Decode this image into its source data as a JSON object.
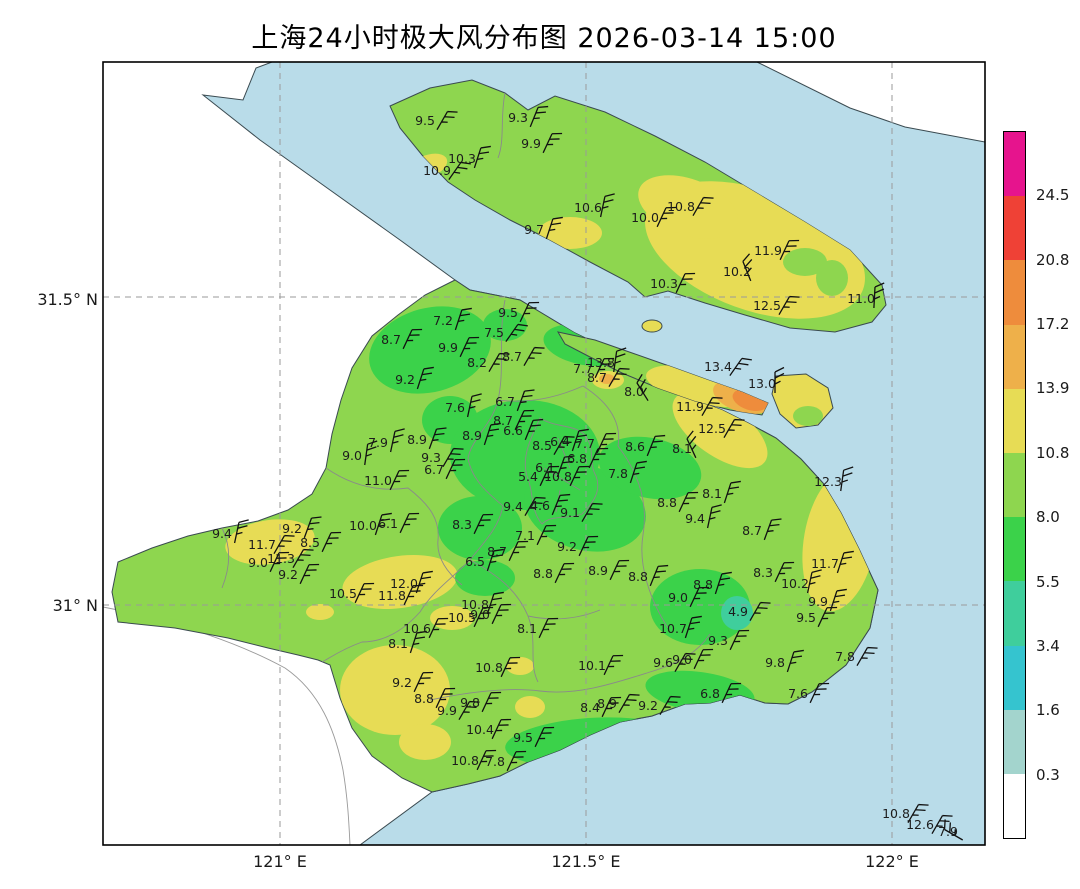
{
  "title": "上海24小时极大风分布图 2026-03-14 15:00",
  "axes": {
    "lat_ticks": [
      "31.5° N",
      "31° N"
    ],
    "lon_ticks": [
      "121° E",
      "121.5° E",
      "122° E"
    ]
  },
  "colorbar": {
    "tick_labels": [
      "24.5",
      "20.8",
      "17.2",
      "13.9",
      "10.8",
      "8.0",
      "5.5",
      "3.4",
      "1.6",
      "0.3"
    ],
    "segment_colors_top_to_bottom": [
      "#e6148d",
      "#ef4136",
      "#ee8c3c",
      "#eeb04a",
      "#e7dc55",
      "#8ed64f",
      "#3bd24a",
      "#3fce9c",
      "#35c4cf",
      "#a3d4cd",
      "#ffffff"
    ]
  },
  "colors": {
    "water": "#b9dce9",
    "land_base": "#8ed64f",
    "patch_green": "#3bd24a",
    "patch_yellow": "#e7dc55",
    "patch_amber": "#eeb04a",
    "patch_orange": "#ee8c3c",
    "patch_teal": "#3fce9c"
  },
  "chart_data": {
    "type": "scatter",
    "title": "上海24小时极大风分布图 2026-03-14 15:00",
    "subtitle_datetime": "2026-03-14 15:00",
    "units": "m/s wind-speed labels at observation stations with wind barbs",
    "lon_ticks": [
      "121° E",
      "121.5° E",
      "122° E"
    ],
    "lat_ticks": [
      "31.5° N",
      "31° N"
    ],
    "color_levels": [
      0.3,
      1.6,
      3.4,
      5.5,
      8.0,
      10.8,
      13.9,
      17.2,
      20.8,
      24.5
    ],
    "legend_position": "right colorbar",
    "grid": "dashed graticule",
    "stations": [
      [
        "9.5",
        425,
        125,
        30
      ],
      [
        "9.3",
        518,
        122,
        22
      ],
      [
        "9.9",
        531,
        148,
        25
      ],
      [
        "10.3",
        462,
        163,
        18
      ],
      [
        "10.9",
        437,
        175,
        35
      ],
      [
        "10.6",
        588,
        212,
        12
      ],
      [
        "9.7",
        534,
        234,
        18
      ],
      [
        "10.0",
        645,
        222,
        25
      ],
      [
        "10.8",
        681,
        211,
        30
      ],
      [
        "11.9",
        768,
        255,
        25
      ],
      [
        "10.2",
        737,
        276,
        -22
      ],
      [
        "10.3",
        664,
        288,
        25
      ],
      [
        "12.5",
        767,
        310,
        30
      ],
      [
        "11.0",
        861,
        303,
        3
      ],
      [
        "13.4",
        718,
        371,
        35
      ],
      [
        "13.0",
        762,
        388,
        0
      ],
      [
        "9.5",
        508,
        317,
        25
      ],
      [
        "7.2",
        443,
        325,
        18
      ],
      [
        "8.7",
        391,
        344,
        25
      ],
      [
        "7.5",
        494,
        337,
        35
      ],
      [
        "9.9",
        448,
        352,
        25
      ],
      [
        "8.2",
        477,
        367,
        30
      ],
      [
        "8.7",
        512,
        361,
        30
      ],
      [
        "9.2",
        405,
        384,
        18
      ],
      [
        "13.8",
        601,
        367,
        8
      ],
      [
        "7.7",
        583,
        373,
        25
      ],
      [
        "8.7",
        597,
        382,
        30
      ],
      [
        "8.0",
        634,
        396,
        -32
      ],
      [
        "7.6",
        455,
        412,
        12
      ],
      [
        "6.7",
        505,
        406,
        20
      ],
      [
        "8.7",
        503,
        425,
        25
      ],
      [
        "8.9",
        472,
        440,
        18
      ],
      [
        "7.9",
        378,
        447,
        12
      ],
      [
        "8.9",
        417,
        444,
        20
      ],
      [
        "9.0",
        352,
        460,
        8
      ],
      [
        "11.0",
        378,
        485,
        25
      ],
      [
        "9.3",
        431,
        462,
        30
      ],
      [
        "6.7",
        434,
        474,
        25
      ],
      [
        "11.9",
        690,
        411,
        30
      ],
      [
        "12.5",
        712,
        433,
        30
      ],
      [
        "8.1",
        682,
        453,
        -25
      ],
      [
        "8.6",
        635,
        451,
        22
      ],
      [
        "7.8",
        618,
        478,
        18
      ],
      [
        "8.8",
        667,
        507,
        25
      ],
      [
        "8.1",
        712,
        498,
        18
      ],
      [
        "9.4",
        695,
        523,
        12
      ],
      [
        "8.7",
        752,
        535,
        20
      ],
      [
        "12.3",
        828,
        486,
        8
      ],
      [
        "6.6",
        513,
        435,
        22
      ],
      [
        "8.5",
        542,
        450,
        30
      ],
      [
        "6.4",
        560,
        446,
        18
      ],
      [
        "7.7",
        585,
        448,
        25
      ],
      [
        "6.8",
        577,
        463,
        25
      ],
      [
        "6.1",
        545,
        472,
        20
      ],
      [
        "5.4",
        528,
        481,
        25
      ],
      [
        "10.8",
        558,
        481,
        25
      ],
      [
        "9.4",
        513,
        511,
        30
      ],
      [
        "4.6",
        540,
        510,
        22
      ],
      [
        "9.1",
        570,
        517,
        30
      ],
      [
        "7.1",
        525,
        540,
        25
      ],
      [
        "10.0",
        363,
        530,
        18
      ],
      [
        "6.1",
        388,
        528,
        25
      ],
      [
        "8.3",
        462,
        529,
        25
      ],
      [
        "8.7",
        497,
        556,
        25
      ],
      [
        "6.5",
        475,
        566,
        18
      ],
      [
        "9.2",
        567,
        551,
        25
      ],
      [
        "8.8",
        543,
        578,
        25
      ],
      [
        "8.9",
        598,
        575,
        25
      ],
      [
        "9.4",
        222,
        538,
        12
      ],
      [
        "9.2",
        292,
        533,
        20
      ],
      [
        "8.5",
        310,
        547,
        25
      ],
      [
        "11.7",
        262,
        549,
        30
      ],
      [
        "9.0",
        258,
        567,
        25
      ],
      [
        "11.3",
        281,
        563,
        30
      ],
      [
        "9.2",
        288,
        579,
        25
      ],
      [
        "10.5",
        343,
        598,
        25
      ],
      [
        "12.0",
        404,
        588,
        18
      ],
      [
        "11.8",
        392,
        600,
        25
      ],
      [
        "10.8",
        475,
        609,
        18
      ],
      [
        "9.0",
        480,
        619,
        25
      ],
      [
        "10.5",
        462,
        622,
        25
      ],
      [
        "10.6",
        417,
        633,
        25
      ],
      [
        "8.1",
        398,
        648,
        18
      ],
      [
        "10.8",
        489,
        672,
        25
      ],
      [
        "8.1",
        527,
        633,
        25
      ],
      [
        "9.2",
        402,
        687,
        25
      ],
      [
        "8.8",
        424,
        703,
        25
      ],
      [
        "9.9",
        447,
        715,
        30
      ],
      [
        "10.4",
        480,
        734,
        25
      ],
      [
        "9.8",
        470,
        707,
        25
      ],
      [
        "9.5",
        523,
        742,
        25
      ],
      [
        "10.8",
        465,
        765,
        25
      ],
      [
        "7.8",
        495,
        766,
        25
      ],
      [
        "10.1",
        592,
        670,
        25
      ],
      [
        "8.4",
        590,
        712,
        25
      ],
      [
        "8.9",
        607,
        708,
        30
      ],
      [
        "9.2",
        648,
        710,
        30
      ],
      [
        "6.8",
        710,
        698,
        25
      ],
      [
        "8.8",
        638,
        581,
        22
      ],
      [
        "8.8",
        703,
        589,
        18
      ],
      [
        "9.0",
        678,
        602,
        25
      ],
      [
        "8.3",
        763,
        577,
        25
      ],
      [
        "11.7",
        825,
        568,
        18
      ],
      [
        "10.2",
        795,
        588,
        12
      ],
      [
        "9.9",
        818,
        606,
        18
      ],
      [
        "9.5",
        806,
        622,
        25
      ],
      [
        "4.9",
        738,
        616,
        30
      ],
      [
        "10.7",
        673,
        633,
        18
      ],
      [
        "9.3",
        718,
        645,
        25
      ],
      [
        "9.6",
        663,
        667,
        30
      ],
      [
        "9.0",
        682,
        664,
        25
      ],
      [
        "9.8",
        775,
        667,
        18
      ],
      [
        "7.8",
        845,
        661,
        30
      ],
      [
        "7.6",
        798,
        698,
        25
      ],
      [
        "10.8",
        896,
        818,
        30
      ],
      [
        "12.6",
        920,
        829,
        30
      ],
      [
        "7.9",
        948,
        836,
        -60
      ]
    ]
  }
}
